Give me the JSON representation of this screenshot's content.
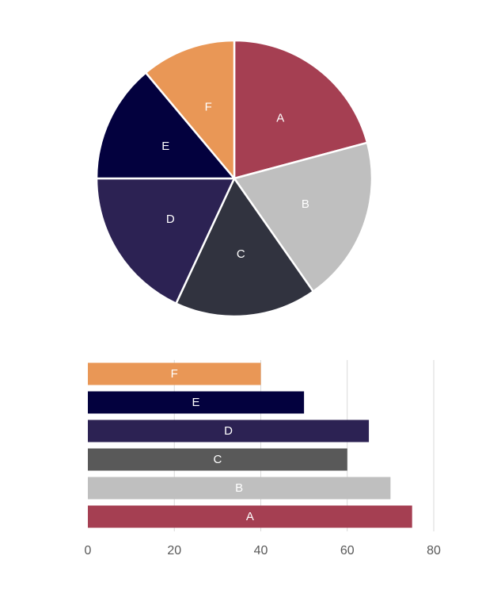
{
  "chart_data": [
    {
      "type": "pie",
      "title": "",
      "slices": [
        {
          "label": "A",
          "value": 75,
          "color": "#A53F52"
        },
        {
          "label": "B",
          "value": 70,
          "color": "#BFBFBF"
        },
        {
          "label": "C",
          "value": 60,
          "color": "#31333F"
        },
        {
          "label": "D",
          "value": 65,
          "color": "#2C2253"
        },
        {
          "label": "E",
          "value": 50,
          "color": "#03013E"
        },
        {
          "label": "F",
          "value": 40,
          "color": "#E99756"
        }
      ],
      "legend": "none",
      "data_labels": "category-inside"
    },
    {
      "type": "bar",
      "orientation": "horizontal",
      "title": "",
      "xlabel": "",
      "ylabel": "",
      "categories": [
        "A",
        "B",
        "C",
        "D",
        "E",
        "F"
      ],
      "values": [
        75,
        70,
        60,
        65,
        50,
        40
      ],
      "colors": [
        "#A53F52",
        "#BFBFBF",
        "#595959",
        "#2C2253",
        "#03013E",
        "#E99756"
      ],
      "xlim": [
        0,
        80
      ],
      "xticks": [
        "0",
        "20",
        "40",
        "60",
        "80"
      ],
      "grid": "vertical",
      "legend": "none",
      "data_labels": "category-inside"
    }
  ]
}
